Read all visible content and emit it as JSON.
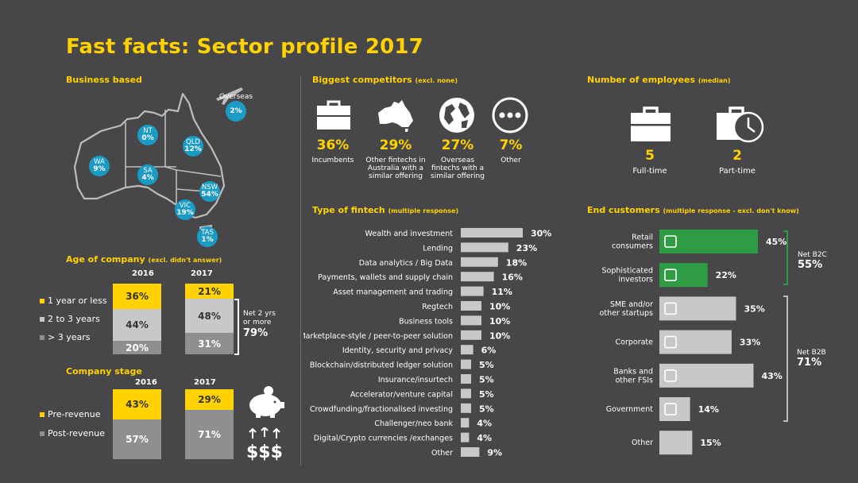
{
  "title": "Fast facts: Sector profile 2017",
  "colors": {
    "yellow": "#ffd200",
    "blue": "#1a9bc4",
    "green": "#2e9b45",
    "grey_bar": "#c8c8c8",
    "mid_grey": "#8f8f91",
    "dark": "#474749"
  },
  "business_based": {
    "heading": "Business based",
    "regions": [
      {
        "name": "WA",
        "value": "9%"
      },
      {
        "name": "NT",
        "value": "0%"
      },
      {
        "name": "SA",
        "value": "4%"
      },
      {
        "name": "QLD",
        "value": "12%"
      },
      {
        "name": "NSW",
        "value": "54%"
      },
      {
        "name": "VIC",
        "value": "19%"
      },
      {
        "name": "TAS",
        "value": "1%"
      },
      {
        "name": "Overseas",
        "value": "2%"
      }
    ]
  },
  "age_of_company": {
    "heading": "Age of company",
    "note": "(excl. didn't answer)",
    "years": [
      "2016",
      "2017"
    ],
    "legend": [
      "1 year or less",
      "2 to 3 years",
      "> 3 years"
    ],
    "y2016": [
      "36%",
      "44%",
      "20%"
    ],
    "y2017": [
      "21%",
      "48%",
      "31%"
    ],
    "net_label": "Net 2 yrs\nor more",
    "net_value": "79%"
  },
  "company_stage": {
    "heading": "Company stage",
    "years": [
      "2016",
      "2017"
    ],
    "legend": [
      "Pre-revenue",
      "Post-revenue"
    ],
    "y2016": [
      "43%",
      "57%"
    ],
    "y2017": [
      "29%",
      "71%"
    ]
  },
  "competitors": {
    "heading": "Biggest competitors",
    "note": "(excl. none)",
    "items": [
      {
        "pct": "36%",
        "label": "Incumbents"
      },
      {
        "pct": "29%",
        "label": "Other fintechs in Australia with a similar offering"
      },
      {
        "pct": "27%",
        "label": "Overseas fintechs with a similar offering"
      },
      {
        "pct": "7%",
        "label": "Other"
      }
    ]
  },
  "employees": {
    "heading": "Number of employees",
    "note": "(median)",
    "items": [
      {
        "num": "5",
        "label": "Full-time"
      },
      {
        "num": "2",
        "label": "Part-time"
      }
    ]
  },
  "fintech_type": {
    "heading": "Type of fintech",
    "note": "(multiple response)"
  },
  "end_customers": {
    "heading": "End customers",
    "note": "(multiple response - excl. don't know)",
    "net_b2c_label": "Net B2C",
    "net_b2c_value": "55%",
    "net_b2b_label": "Net B2B",
    "net_b2b_value": "71%"
  },
  "chart_data": [
    {
      "type": "bar",
      "title": "Type of fintech",
      "categories": [
        "Wealth and investment",
        "Lending",
        "Data analytics / Big Data",
        "Payments, wallets and supply chain",
        "Asset management and trading",
        "Regtech",
        "Business tools",
        "Marketplace-style / peer-to-peer solution",
        "Identity, security and privacy",
        "Blockchain/distributed ledger solution",
        "Insurance/insurtech",
        "Accelerator/venture capital",
        "Crowdfunding/fractionalised investing",
        "Challenger/neo bank",
        "Digital/Crypto currencies /exchanges",
        "Other"
      ],
      "values": [
        30,
        23,
        18,
        16,
        11,
        10,
        10,
        10,
        6,
        5,
        5,
        5,
        5,
        4,
        4,
        9
      ],
      "labels": [
        "30%",
        "23%",
        "18%",
        "16%",
        "11%",
        "10%",
        "10%",
        "10%",
        "6%",
        "5%",
        "5%",
        "5%",
        "5%",
        "4%",
        "4%",
        "9%"
      ],
      "xlim": [
        0,
        30
      ]
    },
    {
      "type": "bar",
      "title": "End customers",
      "categories": [
        "Retail consumers",
        "Sophisticated investors",
        "SME and/or other startups",
        "Corporate",
        "Banks and other FSIs",
        "Government",
        "Other"
      ],
      "values": [
        45,
        22,
        35,
        33,
        43,
        14,
        15
      ],
      "labels": [
        "45%",
        "22%",
        "35%",
        "33%",
        "43%",
        "14%",
        "15%"
      ],
      "icons": [
        "shopping-bag-icon",
        "money-plant-icon",
        "rocket-icon",
        "suit-tie-icon",
        "bank-icon",
        "government-building-icon",
        ""
      ],
      "xlim": [
        0,
        45
      ]
    }
  ]
}
